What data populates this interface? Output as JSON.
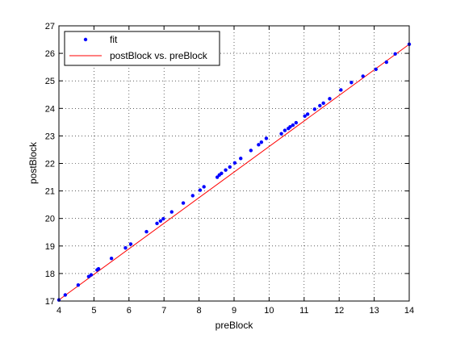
{
  "chart_data": {
    "type": "scatter",
    "title": "",
    "xlabel": "preBlock",
    "ylabel": "postBlock",
    "xlim": [
      4,
      14
    ],
    "ylim": [
      17,
      27
    ],
    "grid": true,
    "legend_placement": "top-left",
    "x_ticks": [
      "4",
      "5",
      "6",
      "7",
      "8",
      "9",
      "10",
      "11",
      "12",
      "13",
      "14"
    ],
    "y_ticks": [
      "17",
      "18",
      "19",
      "20",
      "21",
      "22",
      "23",
      "24",
      "25",
      "26",
      "27"
    ],
    "series": [
      {
        "name": "fit",
        "kind": "points",
        "color": "#0000ff",
        "marker": "dot",
        "points": [
          [
            4.0,
            17.04
          ],
          [
            4.18,
            17.22
          ],
          [
            4.55,
            17.58
          ],
          [
            4.85,
            17.89
          ],
          [
            4.92,
            17.95
          ],
          [
            5.09,
            18.13
          ],
          [
            5.13,
            18.17
          ],
          [
            5.5,
            18.55
          ],
          [
            5.9,
            18.93
          ],
          [
            6.05,
            19.07
          ],
          [
            6.5,
            19.52
          ],
          [
            6.8,
            19.82
          ],
          [
            6.9,
            19.91
          ],
          [
            6.98,
            19.99
          ],
          [
            7.22,
            20.24
          ],
          [
            7.55,
            20.56
          ],
          [
            7.82,
            20.83
          ],
          [
            8.03,
            21.03
          ],
          [
            8.14,
            21.15
          ],
          [
            8.52,
            21.5
          ],
          [
            8.58,
            21.58
          ],
          [
            8.64,
            21.64
          ],
          [
            8.76,
            21.76
          ],
          [
            8.88,
            21.87
          ],
          [
            9.02,
            22.02
          ],
          [
            9.19,
            22.18
          ],
          [
            9.48,
            22.47
          ],
          [
            9.7,
            22.68
          ],
          [
            9.78,
            22.77
          ],
          [
            9.92,
            22.91
          ],
          [
            10.35,
            23.08
          ],
          [
            10.45,
            23.2
          ],
          [
            10.55,
            23.27
          ],
          [
            10.6,
            23.33
          ],
          [
            10.68,
            23.39
          ],
          [
            10.77,
            23.48
          ],
          [
            11.02,
            23.72
          ],
          [
            11.1,
            23.79
          ],
          [
            11.3,
            23.97
          ],
          [
            11.45,
            24.1
          ],
          [
            11.55,
            24.19
          ],
          [
            11.73,
            24.35
          ],
          [
            12.05,
            24.67
          ],
          [
            12.35,
            24.94
          ],
          [
            12.68,
            25.17
          ],
          [
            13.05,
            25.42
          ],
          [
            13.35,
            25.68
          ],
          [
            13.6,
            25.98
          ],
          [
            14.0,
            26.33
          ]
        ]
      },
      {
        "name": "postBlock vs. preBlock",
        "kind": "line",
        "color": "#ff0000",
        "x": [
          4.0,
          14.0
        ],
        "y": [
          17.04,
          26.33
        ]
      }
    ]
  }
}
